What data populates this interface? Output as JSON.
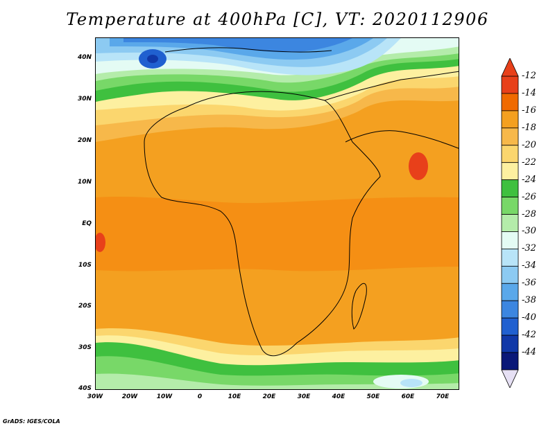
{
  "title": "Temperature at 400hPa [C], VT: 2020112906",
  "footer": "GrADS: IGES/COLA",
  "lat_labels": [
    "40N",
    "30N",
    "20N",
    "10N",
    "EQ",
    "10S",
    "20S",
    "30S",
    "40S"
  ],
  "lon_labels": [
    "30W",
    "20W",
    "10W",
    "0",
    "10E",
    "20E",
    "30E",
    "40E",
    "50E",
    "60E",
    "70E"
  ],
  "colorbar": {
    "labels": [
      "-12",
      "-14",
      "-16",
      "-18",
      "-20",
      "-22",
      "-24",
      "-26",
      "-28",
      "-30",
      "-32",
      "-34",
      "-36",
      "-38",
      "-40",
      "-42",
      "-44"
    ],
    "colors": [
      "#e8401a",
      "#f06a00",
      "#f4a020",
      "#f7b84a",
      "#fbd66e",
      "#fdf0a0",
      "#3fc03f",
      "#78d868",
      "#b4ecaa",
      "#e4fbf4",
      "#b8e4f8",
      "#8ccaf2",
      "#5aa8ea",
      "#3c86e0",
      "#2060d0",
      "#1038a8",
      "#0a1878"
    ],
    "over_color": "#e8401a",
    "under_color": "#e6e0f4"
  }
}
